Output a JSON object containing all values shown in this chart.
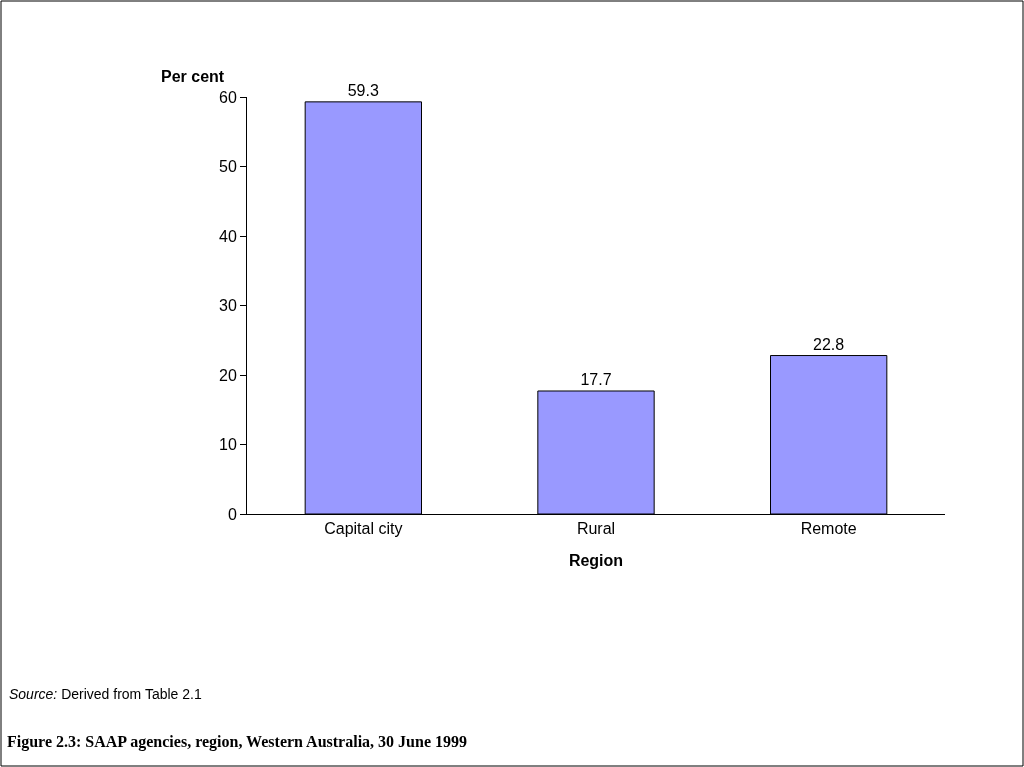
{
  "chart_data": {
    "type": "bar",
    "title": "Figure 2.3: SAAP agencies, region, Western Australia, 30 June 1999",
    "xlabel": "Region",
    "ylabel": "Per cent",
    "categories": [
      "Capital city",
      "Rural",
      "Remote"
    ],
    "values": [
      59.3,
      17.7,
      22.8
    ],
    "color": "#9999ff",
    "data_labels": true,
    "ylim": [
      0,
      60
    ],
    "yticks": [
      0,
      10,
      20,
      30,
      40,
      50,
      60
    ],
    "grid": false,
    "legend": false,
    "annotations": [
      "Source: Derived from Table 2.1"
    ]
  }
}
